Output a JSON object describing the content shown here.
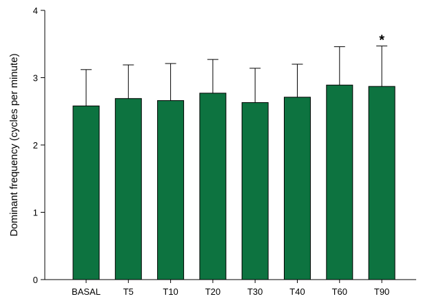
{
  "chart_data": {
    "type": "bar",
    "categories": [
      "BASAL",
      "T5",
      "T10",
      "T20",
      "T30",
      "T40",
      "T60",
      "T90"
    ],
    "values": [
      2.58,
      2.69,
      2.66,
      2.77,
      2.63,
      2.71,
      2.89,
      2.87
    ],
    "error_upper": [
      3.12,
      3.19,
      3.21,
      3.27,
      3.14,
      3.2,
      3.46,
      3.47
    ],
    "title": "",
    "xlabel": "",
    "ylabel": "Dominant frequency (cycles per minute)",
    "ylim": [
      0,
      4
    ],
    "yticks": [
      "0",
      "1",
      "2",
      "3",
      "4"
    ],
    "grid": false,
    "bar_color": "#0d7340",
    "annotations": [
      {
        "category": "T90",
        "text": "*"
      }
    ]
  }
}
